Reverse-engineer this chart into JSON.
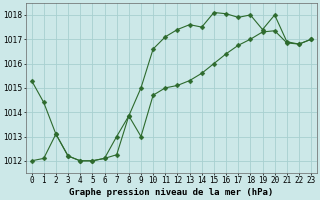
{
  "line1_x": [
    0,
    1,
    2,
    3,
    4,
    5,
    6,
    7,
    8,
    9,
    10,
    11,
    12,
    13,
    14,
    15,
    16,
    17,
    18,
    19,
    20,
    21,
    22,
    23
  ],
  "line1_y": [
    1015.3,
    1014.4,
    1013.1,
    1012.2,
    1012.0,
    1012.0,
    1012.1,
    1013.0,
    1013.85,
    1015.0,
    1016.6,
    1017.1,
    1017.4,
    1017.6,
    1017.5,
    1018.1,
    1018.05,
    1017.9,
    1018.0,
    1017.4,
    1018.0,
    1016.9,
    1016.8,
    1017.0
  ],
  "line2_x": [
    0,
    1,
    2,
    3,
    4,
    5,
    6,
    7,
    8,
    9,
    10,
    11,
    12,
    13,
    14,
    15,
    16,
    17,
    18,
    19,
    20,
    21,
    22,
    23
  ],
  "line2_y": [
    1012.0,
    1012.1,
    1013.1,
    1012.2,
    1012.0,
    1012.0,
    1012.1,
    1012.25,
    1013.85,
    1013.0,
    1014.7,
    1015.0,
    1015.1,
    1015.3,
    1015.6,
    1016.0,
    1016.4,
    1016.75,
    1017.0,
    1017.3,
    1017.35,
    1016.85,
    1016.8,
    1017.0
  ],
  "background_color": "#cce8e8",
  "grid_color": "#a8d0d0",
  "line_color": "#2d6a2d",
  "marker": "D",
  "marker_size": 2.5,
  "ylim": [
    1011.5,
    1018.5
  ],
  "xlim": [
    -0.5,
    23.5
  ],
  "yticks": [
    1012,
    1013,
    1014,
    1015,
    1016,
    1017,
    1018
  ],
  "xtick_labels": [
    "0",
    "1",
    "2",
    "3",
    "4",
    "5",
    "6",
    "7",
    "8",
    "9",
    "10",
    "11",
    "12",
    "13",
    "14",
    "15",
    "16",
    "17",
    "18",
    "19",
    "20",
    "21",
    "22",
    "23"
  ],
  "xlabel": "Graphe pression niveau de la mer (hPa)",
  "label_fontsize": 6.5,
  "tick_fontsize": 5.5
}
